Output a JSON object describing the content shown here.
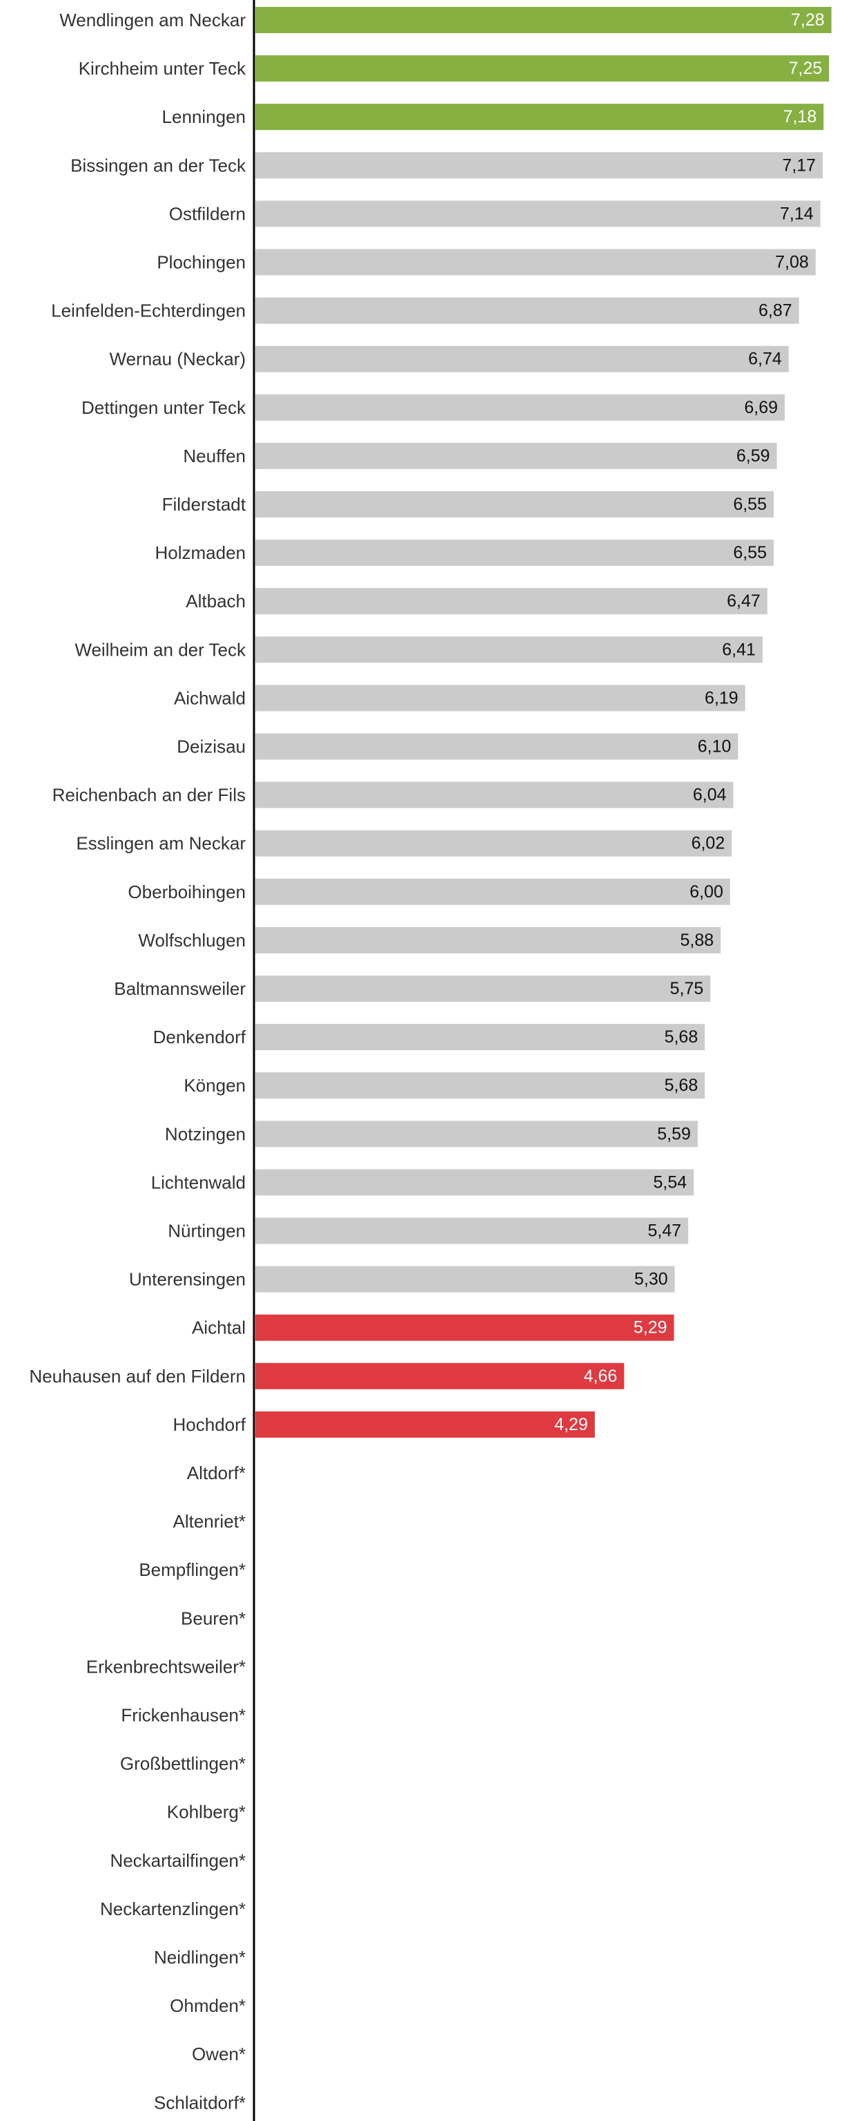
{
  "chart_data": {
    "type": "bar",
    "orientation": "horizontal",
    "title": "",
    "xlabel": "",
    "ylabel": "",
    "xlim": [
      0,
      7.3
    ],
    "grid": false,
    "legend": "none",
    "colors": {
      "top": "#86b042",
      "bottom": "#de3a40",
      "neutral": "#cbcbcb",
      "axis": "#000000",
      "label": "#333333",
      "value_on_color": "#ffffff",
      "value_on_neutral": "#111111"
    },
    "categories": [
      "Wendlingen am Neckar",
      "Kirchheim unter Teck",
      "Lenningen",
      "Bissingen an der Teck",
      "Ostfildern",
      "Plochingen",
      "Leinfelden-Echterdingen",
      "Wernau (Neckar)",
      "Dettingen unter Teck",
      "Neuffen",
      "Filderstadt",
      "Holzmaden",
      "Altbach",
      "Weilheim an der Teck",
      "Aichwald",
      "Deizisau",
      "Reichenbach an der Fils",
      "Esslingen am Neckar",
      "Oberboihingen",
      "Wolfschlugen",
      "Baltmannsweiler",
      "Denkendorf",
      "Köngen",
      "Notzingen",
      "Lichtenwald",
      "Nürtingen",
      "Unterensingen",
      "Aichtal",
      "Neuhausen auf den Fildern",
      "Hochdorf",
      "Altdorf*",
      "Altenriet*",
      "Bempflingen*",
      "Beuren*",
      "Erkenbrechtsweiler*",
      "Frickenhausen*",
      "Großbettlingen*",
      "Kohlberg*",
      "Neckartailfingen*",
      "Neckartenzlingen*",
      "Neidlingen*",
      "Ohmden*",
      "Owen*",
      "Schlaitdorf*"
    ],
    "values": [
      7.28,
      7.25,
      7.18,
      7.17,
      7.14,
      7.08,
      6.87,
      6.74,
      6.69,
      6.59,
      6.55,
      6.55,
      6.47,
      6.41,
      6.19,
      6.1,
      6.04,
      6.02,
      6.0,
      5.88,
      5.75,
      5.68,
      5.68,
      5.59,
      5.54,
      5.47,
      5.3,
      5.29,
      4.66,
      4.29,
      null,
      null,
      null,
      null,
      null,
      null,
      null,
      null,
      null,
      null,
      null,
      null,
      null,
      null
    ],
    "value_labels": [
      "7,28",
      "7,25",
      "7,18",
      "7,17",
      "7,14",
      "7,08",
      "6,87",
      "6,74",
      "6,69",
      "6,59",
      "6,55",
      "6,55",
      "6,47",
      "6,41",
      "6,19",
      "6,10",
      "6,04",
      "6,02",
      "6,00",
      "5,88",
      "5,75",
      "5,68",
      "5,68",
      "5,59",
      "5,54",
      "5,47",
      "5,30",
      "5,29",
      "4,66",
      "4,29",
      "",
      "",
      "",
      "",
      "",
      "",
      "",
      "",
      "",
      "",
      "",
      "",
      "",
      ""
    ],
    "highlight": [
      "top",
      "top",
      "top",
      "neutral",
      "neutral",
      "neutral",
      "neutral",
      "neutral",
      "neutral",
      "neutral",
      "neutral",
      "neutral",
      "neutral",
      "neutral",
      "neutral",
      "neutral",
      "neutral",
      "neutral",
      "neutral",
      "neutral",
      "neutral",
      "neutral",
      "neutral",
      "neutral",
      "neutral",
      "neutral",
      "neutral",
      "bottom",
      "bottom",
      "bottom",
      "neutral",
      "neutral",
      "neutral",
      "neutral",
      "neutral",
      "neutral",
      "neutral",
      "neutral",
      "neutral",
      "neutral",
      "neutral",
      "neutral",
      "neutral",
      "neutral"
    ]
  }
}
